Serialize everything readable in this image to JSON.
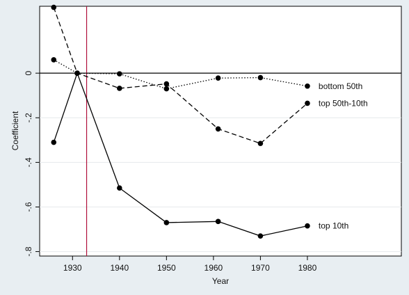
{
  "chart_data": {
    "type": "line",
    "xlabel": "Year",
    "ylabel": "Coefficient",
    "xlim": [
      1923,
      2000
    ],
    "ylim": [
      -0.82,
      0.3
    ],
    "xticks": [
      1930,
      1940,
      1950,
      1960,
      1970,
      1980
    ],
    "yticks": [
      0,
      -0.2,
      -0.4,
      -0.6,
      -0.8
    ],
    "ytick_labels": [
      "0",
      "-.2",
      "-.4",
      "-.6",
      "-.8"
    ],
    "grid": "horizontal",
    "reference_lines": {
      "horizontal_y": 0,
      "vertical_x": 1933
    },
    "vertical_line_color": "#b0103a",
    "series": [
      {
        "name": "bottom 50th",
        "style": "dotted",
        "x": [
          1926,
          1931,
          1940,
          1950,
          1961,
          1970,
          1980
        ],
        "y": [
          0.06,
          0.0,
          -0.003,
          -0.07,
          -0.022,
          -0.02,
          -0.058
        ]
      },
      {
        "name": "top 50th-10th",
        "style": "dashed",
        "x": [
          1926,
          1931,
          1940,
          1950,
          1961,
          1970,
          1980
        ],
        "y": [
          0.295,
          0.0,
          -0.068,
          -0.048,
          -0.25,
          -0.315,
          -0.135
        ]
      },
      {
        "name": "top 10th",
        "style": "solid",
        "x": [
          1926,
          1931,
          1940,
          1950,
          1961,
          1970,
          1980
        ],
        "y": [
          -0.31,
          0.0,
          -0.515,
          -0.67,
          -0.665,
          -0.73,
          -0.685
        ]
      }
    ]
  }
}
